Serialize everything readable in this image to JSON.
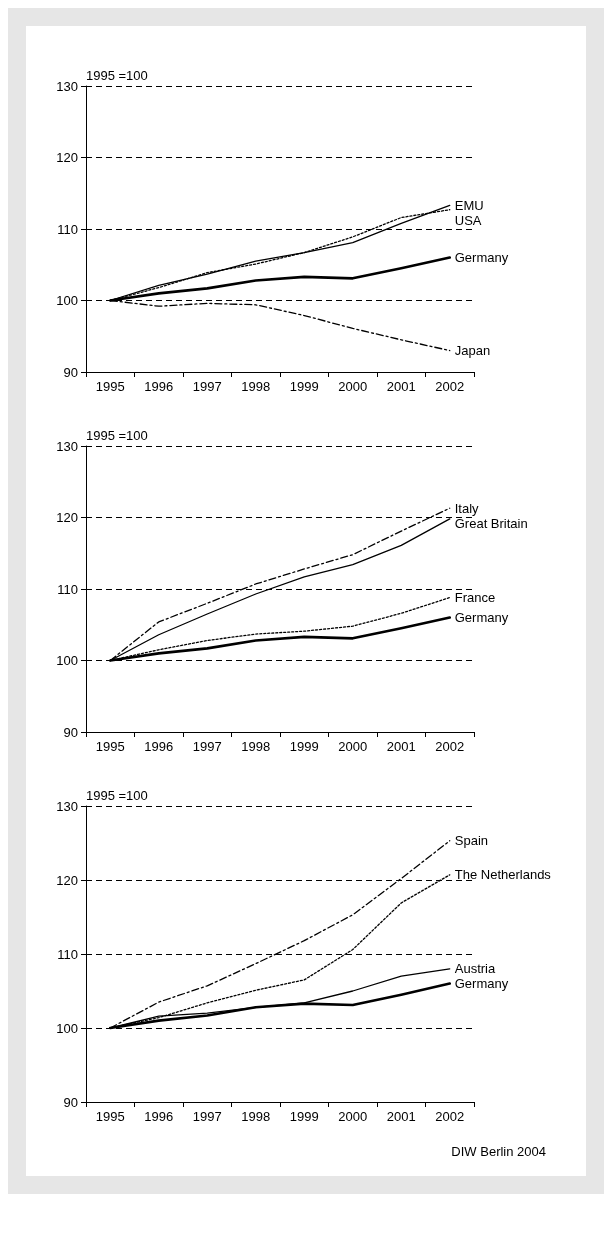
{
  "chart_data": [
    {
      "type": "line",
      "ylabel": "1995 =100",
      "categories": [
        "1995",
        "1996",
        "1997",
        "1998",
        "1999",
        "2000",
        "2001",
        "2002"
      ],
      "ylim": [
        90,
        130
      ],
      "yticks": [
        90,
        100,
        110,
        120,
        130
      ],
      "grid": "y",
      "marker": "none",
      "legend": false,
      "series": [
        {
          "name": "USA",
          "color": "#000000",
          "line_style": "dotted",
          "values": [
            100,
            101.8,
            103.9,
            105.1,
            106.7,
            108.9,
            111.6,
            112.7
          ]
        },
        {
          "name": "EMU",
          "color": "#000000",
          "line_style": "solid",
          "values": [
            100,
            102.1,
            103.7,
            105.5,
            106.7,
            108.1,
            110.8,
            113.3
          ]
        },
        {
          "name": "Japan",
          "color": "#000000",
          "line_style": "dashed",
          "values": [
            100,
            99.2,
            99.6,
            99.4,
            97.9,
            96.1,
            94.5,
            93
          ]
        },
        {
          "name": "Germany",
          "color": "#000000",
          "line_style": "solid",
          "values": [
            100,
            101,
            101.7,
            102.8,
            103.3,
            103.1,
            104.5,
            106
          ]
        }
      ]
    },
    {
      "type": "line",
      "ylabel": "1995 =100",
      "categories": [
        "1995",
        "1996",
        "1997",
        "1998",
        "1999",
        "2000",
        "2001",
        "2002"
      ],
      "ylim": [
        90,
        130
      ],
      "yticks": [
        90,
        100,
        110,
        120,
        130
      ],
      "grid": "y",
      "marker": "none",
      "legend": false,
      "series": [
        {
          "name": "Italy",
          "color": "#000000",
          "line_style": "dashed",
          "values": [
            100,
            105.4,
            108,
            110.7,
            112.8,
            114.8,
            118.1,
            121.3
          ]
        },
        {
          "name": "Great Britain",
          "color": "#000000",
          "line_style": "solid",
          "values": [
            100,
            103.6,
            106.5,
            109.3,
            111.7,
            113.4,
            116.1,
            119.8
          ]
        },
        {
          "name": "France",
          "color": "#000000",
          "line_style": "dotted",
          "values": [
            100,
            101.5,
            102.8,
            103.7,
            104.1,
            104.8,
            106.6,
            108.8
          ]
        },
        {
          "name": "Germany",
          "color": "#000000",
          "line_style": "solid",
          "values": [
            100,
            101,
            101.7,
            102.8,
            103.3,
            103.1,
            104.5,
            106
          ]
        }
      ]
    },
    {
      "type": "line",
      "ylabel": "1995 =100",
      "categories": [
        "1995",
        "1996",
        "1997",
        "1998",
        "1999",
        "2000",
        "2001",
        "2002"
      ],
      "ylim": [
        90,
        130
      ],
      "yticks": [
        90,
        100,
        110,
        120,
        130
      ],
      "grid": "y",
      "marker": "none",
      "legend": false,
      "annotations": [
        "DIW Berlin 2004"
      ],
      "series": [
        {
          "name": "Spain",
          "color": "#000000",
          "line_style": "dashed",
          "values": [
            100,
            103.5,
            105.7,
            108.7,
            111.8,
            115.3,
            120.2,
            125.3
          ]
        },
        {
          "name": "The Netherlands",
          "color": "#000000",
          "line_style": "dotted",
          "values": [
            100,
            101.4,
            103.4,
            105.1,
            106.5,
            110.6,
            116.9,
            120.7
          ]
        },
        {
          "name": "Austria",
          "color": "#000000",
          "line_style": "solid",
          "values": [
            100,
            101.6,
            102,
            102.8,
            103.4,
            105,
            107,
            108
          ]
        },
        {
          "name": "Germany",
          "color": "#000000",
          "line_style": "solid",
          "values": [
            100,
            101,
            101.7,
            102.8,
            103.3,
            103.1,
            104.5,
            106
          ]
        }
      ]
    }
  ]
}
